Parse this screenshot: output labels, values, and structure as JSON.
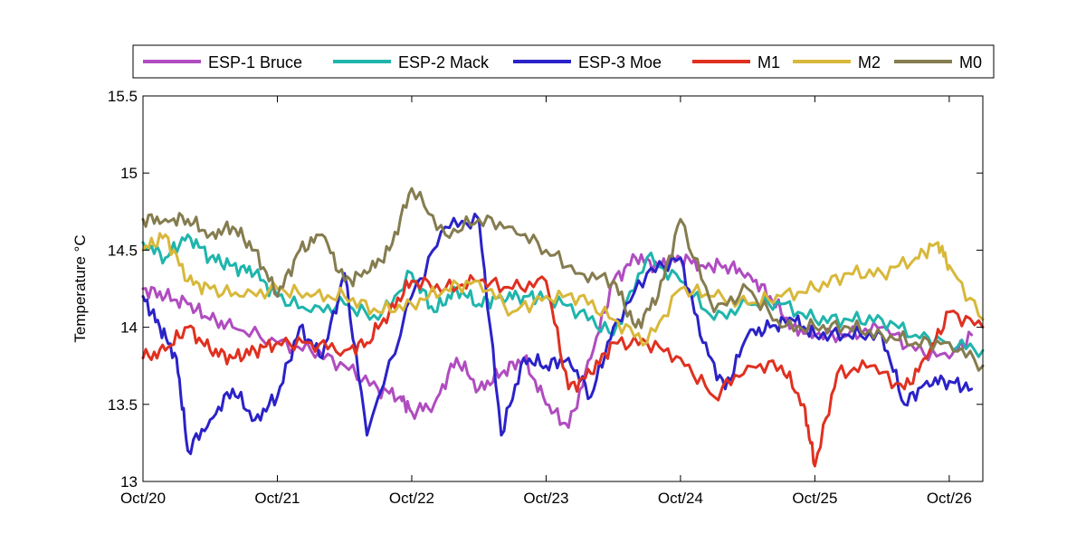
{
  "chart_data": {
    "type": "line",
    "title": "",
    "xlabel": "",
    "ylabel": "Temperature °C",
    "xlim": [
      "2012-10-20",
      "2012-10-26 06:00"
    ],
    "ylim": [
      13,
      15.5
    ],
    "yticks": [
      "13",
      "13.5",
      "14",
      "14.5",
      "15",
      "15.5"
    ],
    "xticks": [
      {
        "date": "2012-10-20",
        "label": "Oct/20"
      },
      {
        "date": "2012-10-21",
        "label": "Oct/21"
      },
      {
        "date": "2012-10-22",
        "label": "Oct/22"
      },
      {
        "date": "2012-10-23",
        "label": "Oct/23"
      },
      {
        "date": "2012-10-24",
        "label": "Oct/24"
      },
      {
        "date": "2012-10-25",
        "label": "Oct/25"
      },
      {
        "date": "2012-10-26",
        "label": "Oct/26"
      }
    ],
    "grid": false,
    "legend": "top, horizontal",
    "series": [
      {
        "name": "ESP-1 Bruce",
        "color": "#B04CC0",
        "x": [
          "2012-10-20 00:00",
          "2012-10-20 04:00",
          "2012-10-20 08:00",
          "2012-10-20 12:00",
          "2012-10-20 16:00",
          "2012-10-21 00:00",
          "2012-10-21 06:00",
          "2012-10-21 12:00",
          "2012-10-21 18:00",
          "2012-10-21 22:00",
          "2012-10-22 00:00",
          "2012-10-22 04:00",
          "2012-10-22 08:00",
          "2012-10-22 12:00",
          "2012-10-22 16:00",
          "2012-10-22 20:00",
          "2012-10-23 00:00",
          "2012-10-23 04:00",
          "2012-10-23 08:00",
          "2012-10-23 12:00",
          "2012-10-23 16:00",
          "2012-10-23 20:00",
          "2012-10-24 00:00",
          "2012-10-24 04:00",
          "2012-10-24 08:00",
          "2012-10-24 12:00",
          "2012-10-24 16:00",
          "2012-10-24 20:00",
          "2012-10-25 00:00",
          "2012-10-25 06:00",
          "2012-10-25 12:00",
          "2012-10-25 18:00",
          "2012-10-26 00:00",
          "2012-10-26 04:00"
        ],
        "y": [
          14.25,
          14.2,
          14.15,
          14.05,
          14.0,
          13.9,
          13.85,
          13.75,
          13.6,
          13.55,
          13.45,
          13.5,
          13.8,
          13.6,
          13.7,
          13.8,
          13.5,
          13.35,
          13.8,
          14.3,
          14.45,
          14.4,
          14.45,
          14.4,
          14.4,
          14.35,
          14.2,
          14.0,
          13.95,
          13.95,
          14.0,
          13.85,
          13.8,
          13.95
        ]
      },
      {
        "name": "ESP-2 Mack",
        "color": "#1FB5AC",
        "x": [
          "2012-10-20 00:00",
          "2012-10-20 04:00",
          "2012-10-20 08:00",
          "2012-10-20 12:00",
          "2012-10-20 16:00",
          "2012-10-20 20:00",
          "2012-10-21 00:00",
          "2012-10-21 06:00",
          "2012-10-21 12:00",
          "2012-10-21 18:00",
          "2012-10-22 00:00",
          "2012-10-22 04:00",
          "2012-10-22 08:00",
          "2012-10-22 12:00",
          "2012-10-22 16:00",
          "2012-10-22 20:00",
          "2012-10-23 00:00",
          "2012-10-23 06:00",
          "2012-10-23 12:00",
          "2012-10-23 18:00",
          "2012-10-24 00:00",
          "2012-10-24 06:00",
          "2012-10-24 12:00",
          "2012-10-24 18:00",
          "2012-10-25 00:00",
          "2012-10-25 06:00",
          "2012-10-25 12:00",
          "2012-10-25 18:00",
          "2012-10-26 00:00",
          "2012-10-26 06:00"
        ],
        "y": [
          14.55,
          14.45,
          14.6,
          14.45,
          14.4,
          14.35,
          14.2,
          14.1,
          14.15,
          14.05,
          14.35,
          14.1,
          14.25,
          14.15,
          14.2,
          14.2,
          14.2,
          14.1,
          13.95,
          14.45,
          14.3,
          14.05,
          14.15,
          14.15,
          14.05,
          14.05,
          14.05,
          13.95,
          13.9,
          13.85
        ]
      },
      {
        "name": "ESP-3 Moe",
        "color": "#2B22C8",
        "x": [
          "2012-10-20 00:00",
          "2012-10-20 03:00",
          "2012-10-20 06:00",
          "2012-10-20 08:00",
          "2012-10-20 12:00",
          "2012-10-20 16:00",
          "2012-10-20 20:00",
          "2012-10-21 00:00",
          "2012-10-21 04:00",
          "2012-10-21 08:00",
          "2012-10-21 12:00",
          "2012-10-21 16:00",
          "2012-10-22 00:00",
          "2012-10-22 06:00",
          "2012-10-22 12:00",
          "2012-10-22 16:00",
          "2012-10-22 20:00",
          "2012-10-23 00:00",
          "2012-10-23 04:00",
          "2012-10-23 08:00",
          "2012-10-23 12:00",
          "2012-10-23 18:00",
          "2012-10-24 00:00",
          "2012-10-24 04:00",
          "2012-10-24 08:00",
          "2012-10-24 12:00",
          "2012-10-24 16:00",
          "2012-10-24 20:00",
          "2012-10-25 00:00",
          "2012-10-25 06:00",
          "2012-10-25 12:00",
          "2012-10-25 16:00",
          "2012-10-25 20:00",
          "2012-10-26 00:00",
          "2012-10-26 04:00"
        ],
        "y": [
          14.2,
          14.0,
          13.8,
          13.2,
          13.4,
          13.6,
          13.4,
          13.55,
          14.0,
          13.8,
          14.35,
          13.3,
          14.2,
          14.65,
          14.7,
          13.3,
          13.8,
          13.75,
          13.8,
          13.55,
          14.0,
          14.35,
          14.45,
          13.9,
          13.6,
          13.95,
          14.0,
          14.05,
          13.95,
          13.95,
          13.95,
          13.5,
          13.65,
          13.65,
          13.6
        ]
      },
      {
        "name": "M1",
        "color": "#E03020",
        "x": [
          "2012-10-20 00:00",
          "2012-10-20 04:00",
          "2012-10-20 08:00",
          "2012-10-20 12:00",
          "2012-10-20 16:00",
          "2012-10-20 20:00",
          "2012-10-21 00:00",
          "2012-10-21 06:00",
          "2012-10-21 12:00",
          "2012-10-21 16:00",
          "2012-10-21 20:00",
          "2012-10-22 00:00",
          "2012-10-22 06:00",
          "2012-10-22 12:00",
          "2012-10-22 18:00",
          "2012-10-23 00:00",
          "2012-10-23 04:00",
          "2012-10-23 08:00",
          "2012-10-23 12:00",
          "2012-10-23 18:00",
          "2012-10-24 00:00",
          "2012-10-24 06:00",
          "2012-10-24 12:00",
          "2012-10-24 18:00",
          "2012-10-24 22:00",
          "2012-10-25 00:00",
          "2012-10-25 04:00",
          "2012-10-25 10:00",
          "2012-10-25 16:00",
          "2012-10-25 20:00",
          "2012-10-26 00:00",
          "2012-10-26 06:00"
        ],
        "y": [
          13.8,
          13.85,
          14.0,
          13.85,
          13.8,
          13.85,
          13.9,
          13.9,
          13.85,
          13.9,
          14.1,
          14.3,
          14.25,
          14.3,
          14.25,
          14.3,
          13.6,
          13.7,
          13.9,
          13.9,
          13.8,
          13.55,
          13.75,
          13.75,
          13.5,
          13.1,
          13.7,
          13.75,
          13.6,
          13.8,
          14.1,
          14.0
        ]
      },
      {
        "name": "M2",
        "color": "#D8B83A",
        "x": [
          "2012-10-20 00:00",
          "2012-10-20 04:00",
          "2012-10-20 08:00",
          "2012-10-20 12:00",
          "2012-10-20 18:00",
          "2012-10-21 00:00",
          "2012-10-21 06:00",
          "2012-10-21 12:00",
          "2012-10-21 18:00",
          "2012-10-22 00:00",
          "2012-10-22 06:00",
          "2012-10-22 12:00",
          "2012-10-22 18:00",
          "2012-10-23 00:00",
          "2012-10-23 06:00",
          "2012-10-23 12:00",
          "2012-10-23 18:00",
          "2012-10-24 00:00",
          "2012-10-24 06:00",
          "2012-10-24 12:00",
          "2012-10-24 18:00",
          "2012-10-25 00:00",
          "2012-10-25 06:00",
          "2012-10-25 12:00",
          "2012-10-25 18:00",
          "2012-10-25 22:00",
          "2012-10-26 00:00",
          "2012-10-26 06:00"
        ],
        "y": [
          14.5,
          14.6,
          14.3,
          14.25,
          14.2,
          14.25,
          14.2,
          14.2,
          14.1,
          14.15,
          14.25,
          14.3,
          14.1,
          14.2,
          14.2,
          14.05,
          13.9,
          14.25,
          14.2,
          14.15,
          14.2,
          14.25,
          14.35,
          14.35,
          14.45,
          14.55,
          14.4,
          14.05
        ]
      },
      {
        "name": "M0",
        "color": "#857C4F",
        "x": [
          "2012-10-20 00:00",
          "2012-10-20 04:00",
          "2012-10-20 08:00",
          "2012-10-20 12:00",
          "2012-10-20 16:00",
          "2012-10-20 20:00",
          "2012-10-21 00:00",
          "2012-10-21 04:00",
          "2012-10-21 08:00",
          "2012-10-21 12:00",
          "2012-10-21 16:00",
          "2012-10-21 20:00",
          "2012-10-22 00:00",
          "2012-10-22 06:00",
          "2012-10-22 12:00",
          "2012-10-22 18:00",
          "2012-10-23 00:00",
          "2012-10-23 06:00",
          "2012-10-23 12:00",
          "2012-10-23 16:00",
          "2012-10-23 20:00",
          "2012-10-24 00:00",
          "2012-10-24 06:00",
          "2012-10-24 12:00",
          "2012-10-24 18:00",
          "2012-10-25 00:00",
          "2012-10-25 06:00",
          "2012-10-25 12:00",
          "2012-10-25 18:00",
          "2012-10-26 00:00",
          "2012-10-26 06:00"
        ],
        "y": [
          14.7,
          14.7,
          14.7,
          14.6,
          14.65,
          14.5,
          14.2,
          14.5,
          14.6,
          14.3,
          14.35,
          14.5,
          14.9,
          14.6,
          14.7,
          14.65,
          14.5,
          14.35,
          14.3,
          14.0,
          14.2,
          14.7,
          14.1,
          14.25,
          14.0,
          14.0,
          14.0,
          13.95,
          13.9,
          13.9,
          13.75
        ]
      }
    ]
  }
}
